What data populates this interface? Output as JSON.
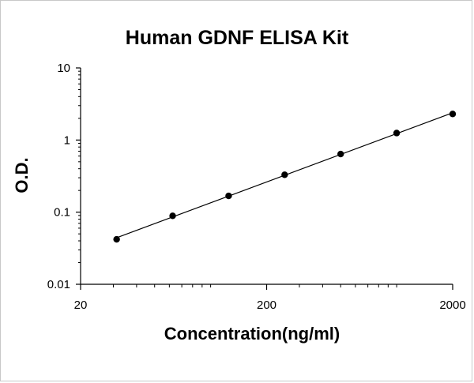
{
  "chart_data": {
    "type": "scatter",
    "title": "Human GDNF ELISA Kit",
    "xlabel": "Concentration(ng/ml)",
    "ylabel": "O.D.",
    "x_scale": "log",
    "y_scale": "log",
    "xlim": [
      20,
      2000
    ],
    "ylim": [
      0.01,
      10
    ],
    "x_ticks": [
      {
        "value": 20,
        "label": "20"
      },
      {
        "value": 200,
        "label": "200"
      },
      {
        "value": 2000,
        "label": "2000"
      }
    ],
    "y_ticks": [
      {
        "value": 0.01,
        "label": "0.01"
      },
      {
        "value": 0.1,
        "label": "0.1"
      },
      {
        "value": 1,
        "label": "1"
      },
      {
        "value": 10,
        "label": "10"
      }
    ],
    "grid": false,
    "legend": "none",
    "trendline": true,
    "series": [
      {
        "x": [
          31.25,
          62.5,
          125,
          250,
          500,
          1000,
          2000
        ],
        "y": [
          0.042,
          0.089,
          0.168,
          0.33,
          0.64,
          1.25,
          2.3
        ]
      }
    ]
  },
  "colors": {
    "points": "#000000",
    "line": "#000000",
    "axes": "#000000"
  }
}
